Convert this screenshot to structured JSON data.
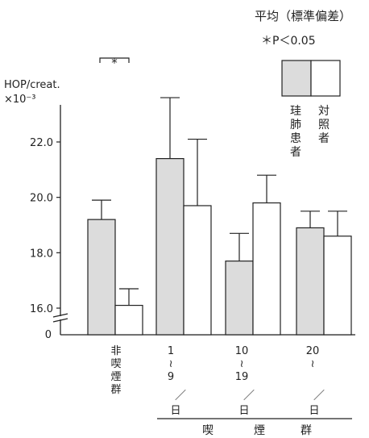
{
  "chart_data": {
    "type": "bar",
    "title": "平均（標準偏差）",
    "significance_note": "＊P＜0.05",
    "ylabel": "HOP/creat.",
    "yunit": "×10⁻³",
    "ylim": [
      15.0,
      23.5
    ],
    "axis_break": true,
    "yticks": [
      "16.0",
      "18.0",
      "20.0",
      "22.0"
    ],
    "ytick_values": [
      16.0,
      18.0,
      20.0,
      22.0
    ],
    "zero_label": "0",
    "categories": [
      "非喫煙群",
      "1～9",
      "10～19",
      "20～"
    ],
    "category_lines": [
      [
        "非",
        "喫",
        "煙",
        "群"
      ],
      [
        "1",
        "≀",
        "9"
      ],
      [
        "10",
        "≀",
        "19"
      ],
      [
        "20",
        "≀"
      ]
    ],
    "per_day_marks": [
      "／",
      "／",
      "／"
    ],
    "per_day_labels": [
      "日",
      "日",
      "日"
    ],
    "group_label": [
      "喫",
      "煙",
      "群"
    ],
    "series": [
      {
        "name": "珪肺患者",
        "name_chars": [
          "珪",
          "肺",
          "患",
          "者"
        ],
        "fill": "#dcdcdc",
        "values": [
          19.2,
          21.4,
          17.7,
          18.9
        ],
        "sd": [
          0.7,
          2.2,
          1.0,
          0.6
        ]
      },
      {
        "name": "対照者",
        "name_chars": [
          "対",
          "照",
          "者"
        ],
        "fill": "#ffffff",
        "values": [
          16.1,
          19.7,
          19.8,
          18.6
        ],
        "sd": [
          0.6,
          2.4,
          1.0,
          0.9
        ]
      }
    ],
    "significance": {
      "category_index": 0,
      "label": "*"
    },
    "grid": false,
    "legend": "top-right"
  }
}
